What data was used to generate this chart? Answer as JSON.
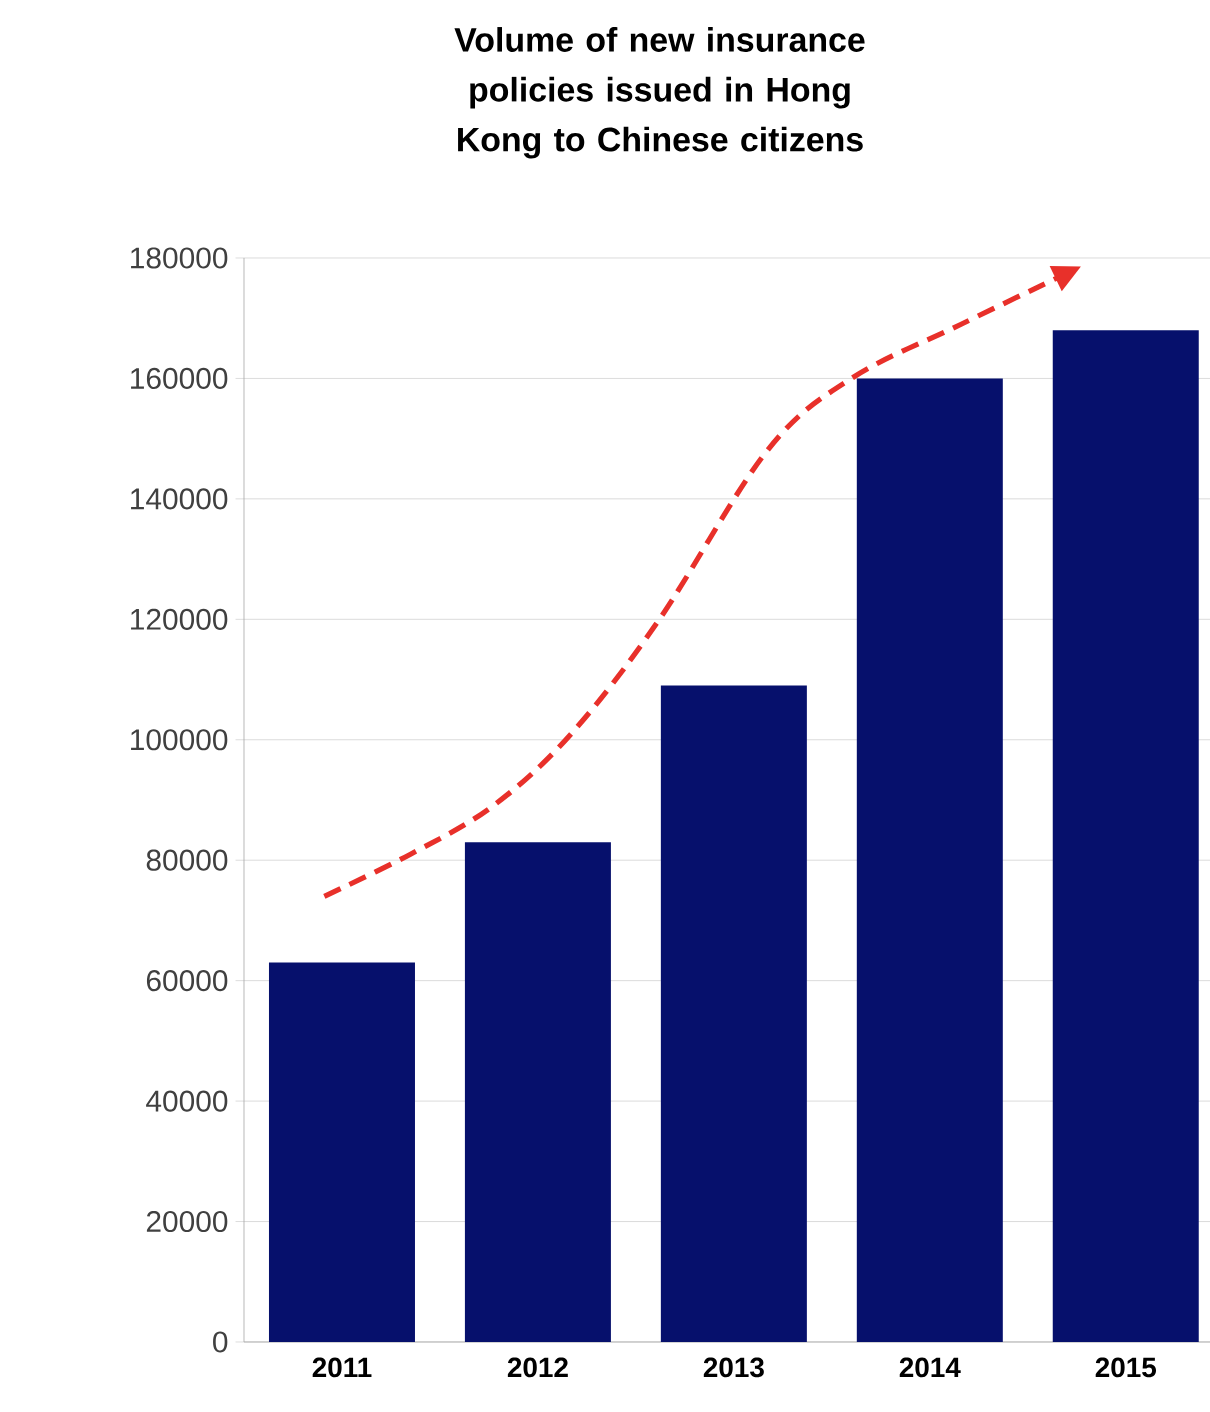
{
  "chart_data": {
    "type": "bar",
    "title": "Volume of new insurance policies issued in Hong Kong to Chinese citizens",
    "series": [
      {
        "type": "bar",
        "x": [
          2011,
          2012,
          2013,
          2014,
          2015
        ],
        "values": [
          63000,
          83000,
          109000,
          160000,
          168000
        ],
        "color": "#06106c"
      },
      {
        "type": "line",
        "x": [
          2010.91,
          2011.35,
          2011.77,
          2012.17,
          2012.62,
          2013.17,
          2013.6,
          2014.16,
          2014.67
        ],
        "values": [
          74000,
          81000,
          89000,
          101000,
          120000,
          148000,
          160000,
          169000,
          177000
        ],
        "color": "#e8302a",
        "line_style": "dashed",
        "marker": "none"
      }
    ],
    "xlim": [
      2010.5,
      2015.43
    ],
    "xticks": [
      2011,
      2012,
      2013,
      2014,
      2015
    ],
    "ylim": [
      0,
      180000
    ],
    "yticks": [
      0,
      20000,
      40000,
      60000,
      80000,
      100000,
      120000,
      140000,
      160000,
      180000
    ],
    "grid": "y"
  }
}
